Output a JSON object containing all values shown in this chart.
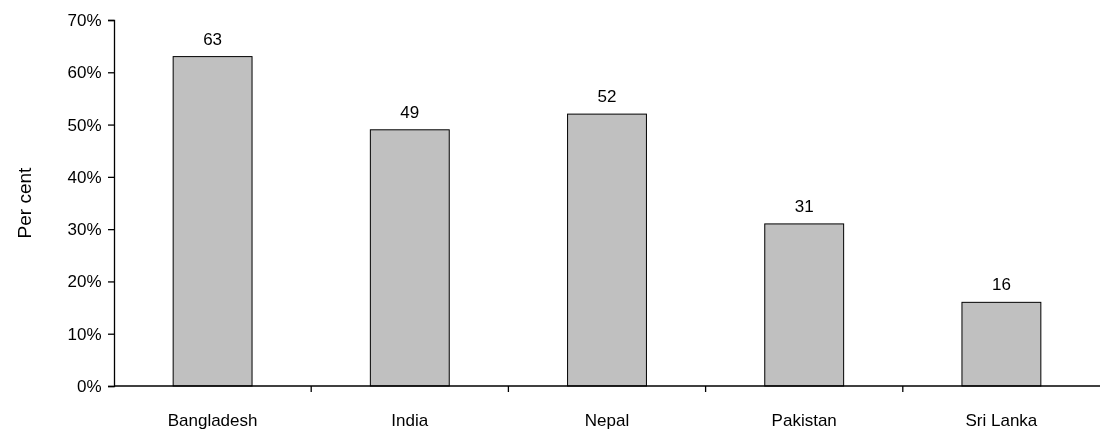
{
  "chart_data": {
    "type": "bar",
    "ylabel": "Per cent",
    "categories": [
      "Bangladesh",
      "India",
      "Nepal",
      "Pakistan",
      "Sri Lanka"
    ],
    "values": [
      63,
      49,
      52,
      31,
      16
    ],
    "color": "#c0c0c0",
    "ylim": [
      0,
      70
    ],
    "yticks": [
      {
        "value": 0,
        "label": "0%"
      },
      {
        "value": 10,
        "label": "10%"
      },
      {
        "value": 20,
        "label": "20%"
      },
      {
        "value": 30,
        "label": "30%"
      },
      {
        "value": 40,
        "label": "40%"
      },
      {
        "value": 50,
        "label": "50%"
      },
      {
        "value": 60,
        "label": "60%"
      },
      {
        "value": 70,
        "label": "70%"
      }
    ],
    "data_labels": true
  }
}
